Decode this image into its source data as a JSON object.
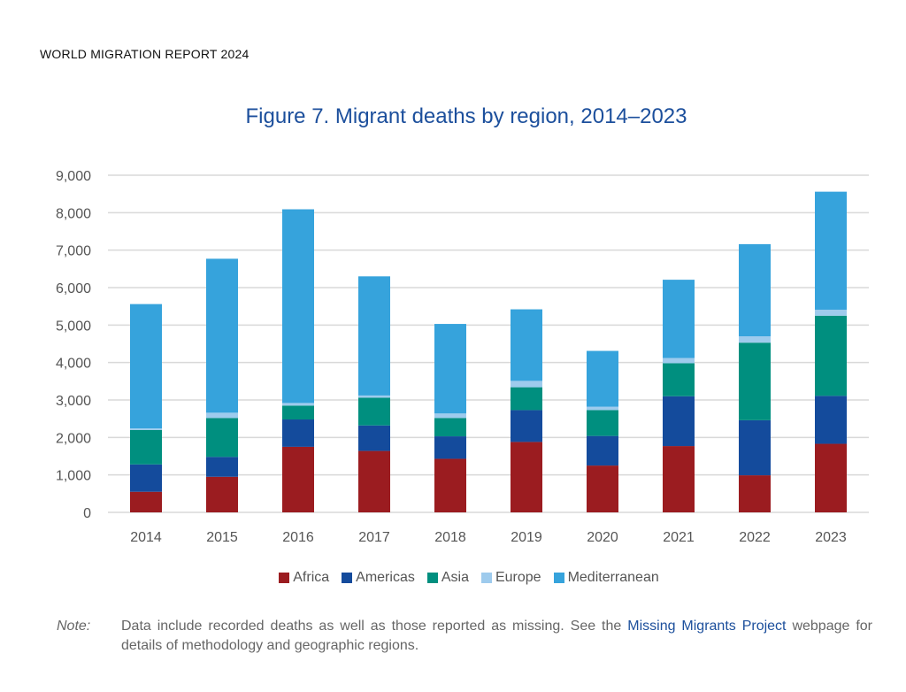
{
  "header": "WORLD MIGRATION REPORT 2024",
  "chart_data": {
    "type": "bar",
    "stacked": true,
    "title": "Figure 7. Migrant deaths by region, 2014–2023",
    "xlabel": "",
    "ylabel": "",
    "ylim": [
      0,
      9000
    ],
    "yticks": [
      0,
      1000,
      2000,
      3000,
      4000,
      5000,
      6000,
      7000,
      8000,
      9000
    ],
    "ytick_labels": [
      "0",
      "1,000",
      "2,000",
      "3,000",
      "4,000",
      "5,000",
      "6,000",
      "7,000",
      "8,000",
      "9,000"
    ],
    "grid": true,
    "legend_position": "bottom",
    "categories": [
      "2014",
      "2015",
      "2016",
      "2017",
      "2018",
      "2019",
      "2020",
      "2021",
      "2022",
      "2023"
    ],
    "series": [
      {
        "name": "Africa",
        "color": "#9b1c20",
        "values": [
          550,
          950,
          1750,
          1640,
          1430,
          1880,
          1250,
          1770,
          990,
          1830
        ]
      },
      {
        "name": "Americas",
        "color": "#144b9c",
        "values": [
          730,
          530,
          730,
          680,
          600,
          850,
          790,
          1330,
          1470,
          1280
        ]
      },
      {
        "name": "Asia",
        "color": "#008f7f",
        "values": [
          920,
          1040,
          370,
          740,
          490,
          610,
          690,
          880,
          2070,
          2140
        ]
      },
      {
        "name": "Europe",
        "color": "#9ecbed",
        "values": [
          40,
          140,
          70,
          60,
          120,
          170,
          90,
          140,
          170,
          160
        ]
      },
      {
        "name": "Mediterranean",
        "color": "#36a3dc",
        "values": [
          3320,
          4110,
          5170,
          3180,
          2390,
          1910,
          1490,
          2090,
          2460,
          3150
        ]
      }
    ]
  },
  "note": {
    "label": "Note:",
    "text_before": "Data include recorded deaths as well as those reported as missing. See the ",
    "link": "Missing Migrants Project",
    "text_after": " webpage for details of methodology and geographic regions."
  }
}
